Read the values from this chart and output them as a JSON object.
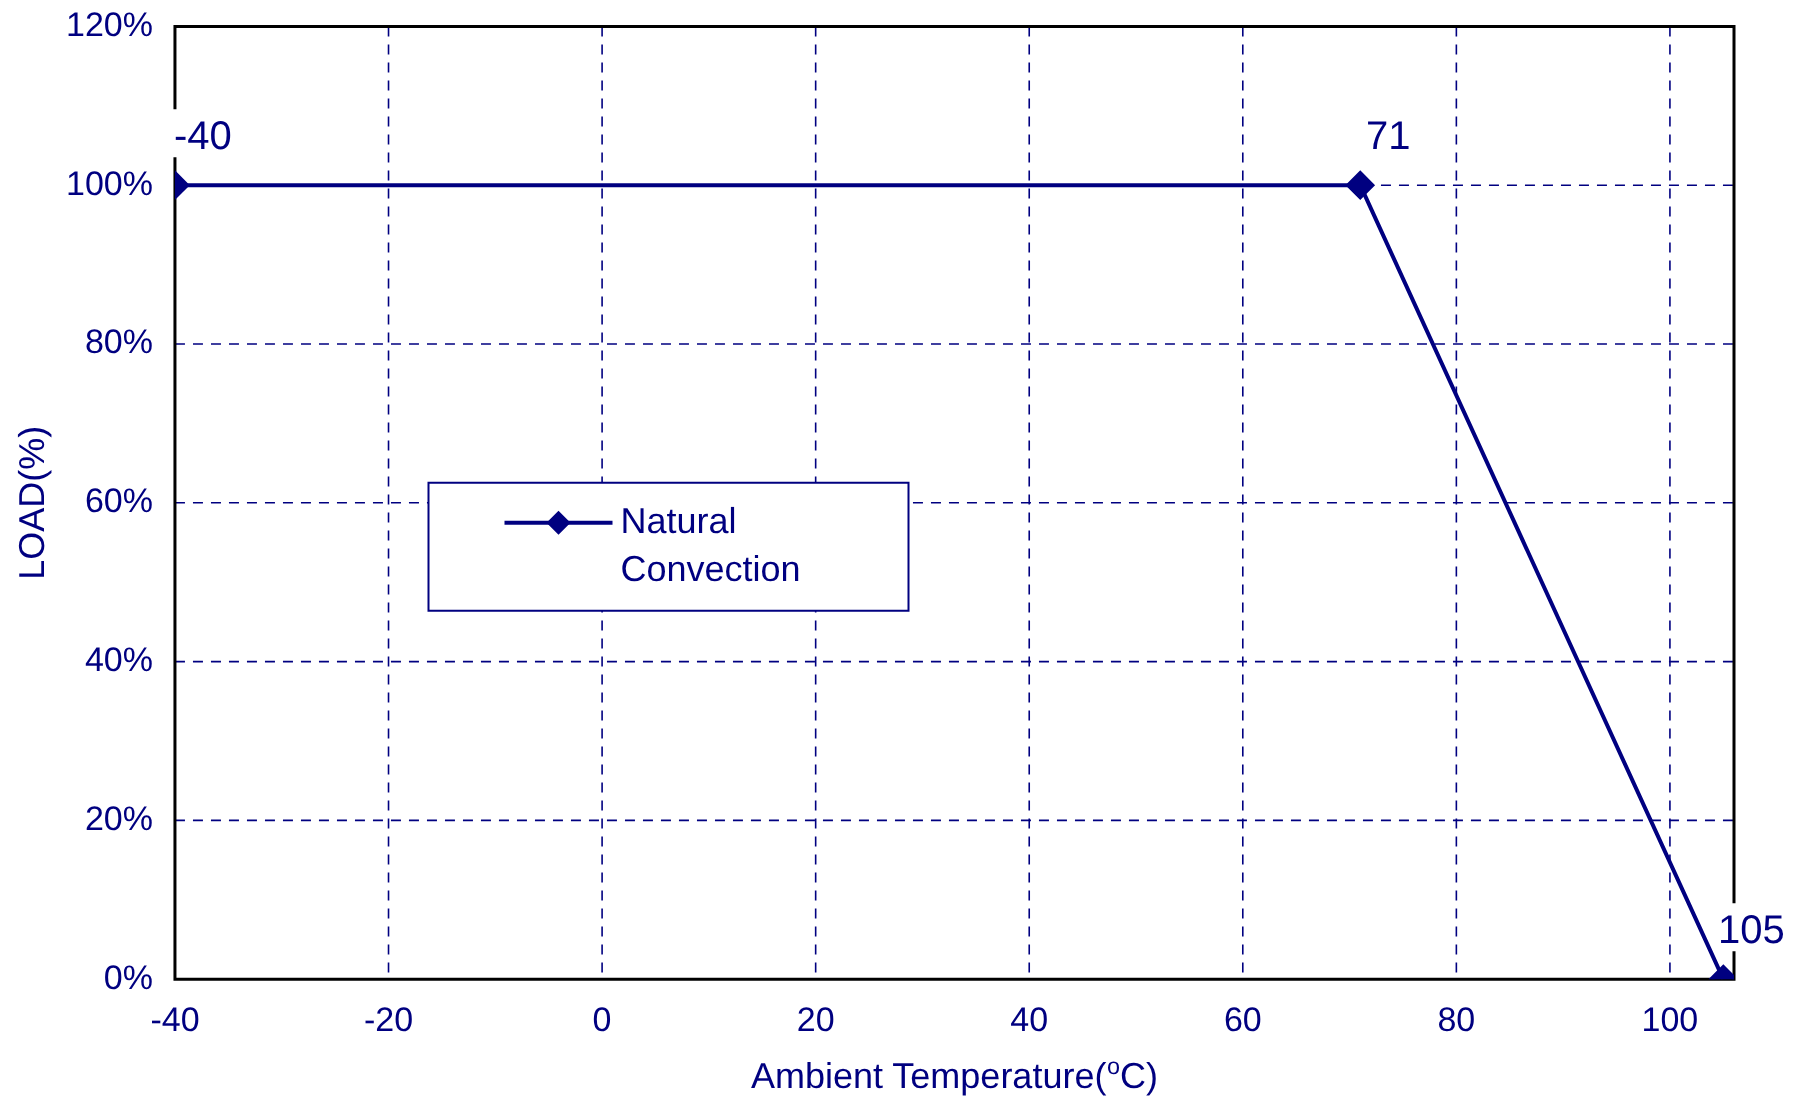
{
  "chart_data": {
    "type": "line",
    "xlabel": "Ambient Temperature($^{o}$C)",
    "ylabel": "LOAD(%)",
    "x": [
      -40,
      71,
      105
    ],
    "series": [
      {
        "name": "Natural Convection",
        "color": "#000080",
        "values": [
          100,
          100,
          0
        ]
      }
    ],
    "xlim": [
      -40,
      106
    ],
    "xticks": [
      -40,
      -20,
      0,
      20,
      40,
      60,
      80,
      100
    ],
    "ylim": [
      0,
      120
    ],
    "yticks": [
      {
        "value": 0,
        "label": "0%"
      },
      {
        "value": 20,
        "label": "20%"
      },
      {
        "value": 40,
        "label": "40%"
      },
      {
        "value": 60,
        "label": "60%"
      },
      {
        "value": 80,
        "label": "80%"
      },
      {
        "value": 100,
        "label": "100%"
      },
      {
        "value": 120,
        "label": "120%"
      }
    ],
    "annotations": [
      {
        "text": "-40",
        "x": -40,
        "y": 100
      },
      {
        "text": "71",
        "x": 71,
        "y": 100
      },
      {
        "text": "105",
        "x": 105,
        "y": 0
      }
    ],
    "grid": true,
    "legend": "left",
    "marker": "diamond",
    "line_style": "solid"
  }
}
